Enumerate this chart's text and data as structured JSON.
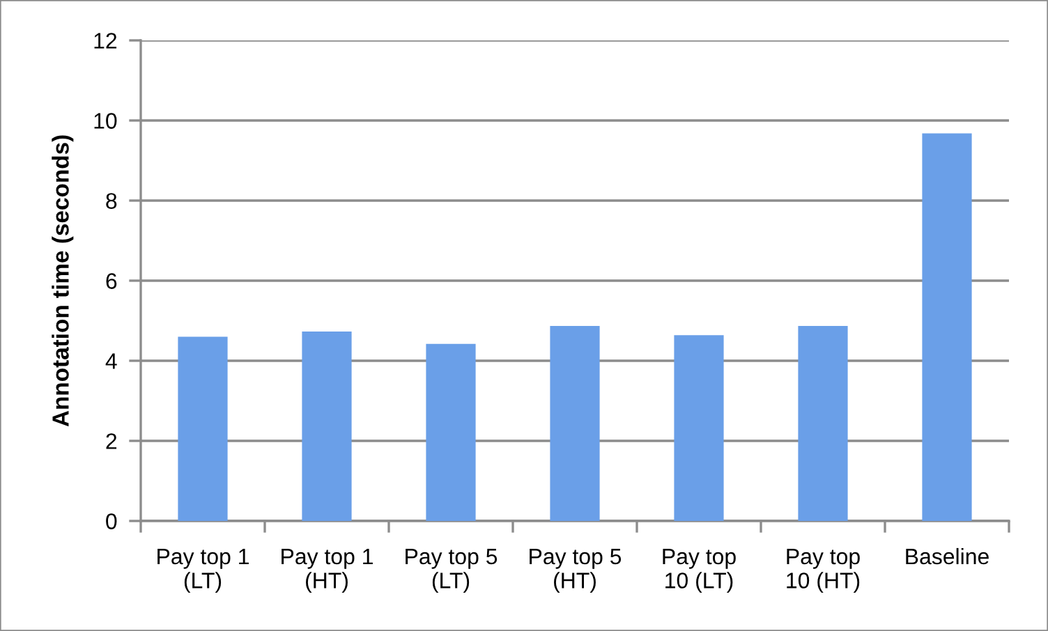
{
  "chart_data": {
    "type": "bar",
    "ylabel": "Annotation time (seconds)",
    "categories": [
      "Pay top 1\n(LT)",
      "Pay top 1\n(HT)",
      "Pay top 5\n(LT)",
      "Pay top 5\n(HT)",
      "Pay top\n10 (LT)",
      "Pay top\n10 (HT)",
      "Baseline"
    ],
    "values": [
      4.6,
      4.73,
      4.42,
      4.87,
      4.64,
      4.87,
      9.68
    ],
    "color": "#6a9fe8",
    "ylim": [
      0,
      12
    ],
    "yticks": [
      0,
      2,
      4,
      6,
      8,
      10,
      12
    ],
    "grid": "y",
    "legend": false
  }
}
